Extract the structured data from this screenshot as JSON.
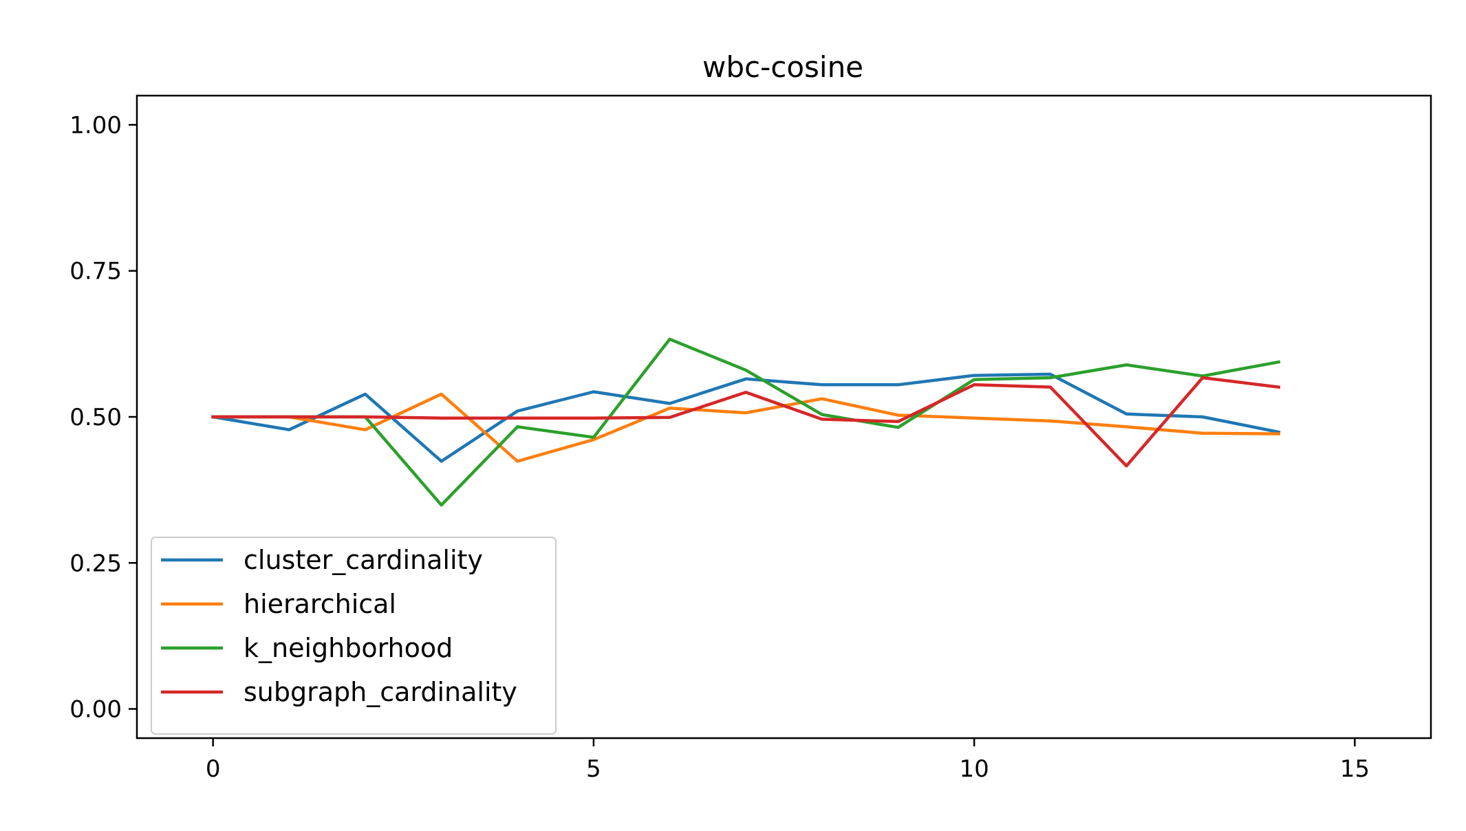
{
  "chart_data": {
    "type": "line",
    "title": "wbc-cosine",
    "xlabel": "",
    "ylabel": "",
    "xlim": [
      -1,
      16
    ],
    "ylim": [
      -0.05,
      1.05
    ],
    "x_ticks": [
      0,
      5,
      10,
      15
    ],
    "y_ticks": [
      0.0,
      0.25,
      0.5,
      0.75,
      1.0
    ],
    "x_tick_labels": [
      "0",
      "5",
      "10",
      "15"
    ],
    "y_tick_labels": [
      "0.00",
      "0.25",
      "0.50",
      "0.75",
      "1.00"
    ],
    "grid": false,
    "legend_position": "lower-left",
    "x": [
      0,
      1,
      2,
      3,
      4,
      5,
      6,
      7,
      8,
      9,
      10,
      11,
      12,
      13,
      14
    ],
    "series": [
      {
        "name": "cluster_cardinality",
        "color": "#1f77b4",
        "values": [
          0.5,
          0.478,
          0.539,
          0.424,
          0.51,
          0.543,
          0.523,
          0.565,
          0.555,
          0.555,
          0.571,
          0.573,
          0.505,
          0.5,
          0.474
        ]
      },
      {
        "name": "hierarchical",
        "color": "#ff7f0e",
        "values": [
          0.5,
          0.5,
          0.478,
          0.539,
          0.424,
          0.461,
          0.515,
          0.507,
          0.531,
          0.503,
          0.498,
          0.493,
          0.483,
          0.472,
          0.471
        ]
      },
      {
        "name": "k_neighborhood",
        "color": "#2ca02c",
        "values": [
          0.5,
          0.5,
          0.5,
          0.349,
          0.483,
          0.465,
          0.633,
          0.58,
          0.504,
          0.482,
          0.564,
          0.567,
          0.589,
          0.57,
          0.594
        ]
      },
      {
        "name": "subgraph_cardinality",
        "color": "#d62728",
        "values": [
          0.5,
          0.5,
          0.5,
          0.498,
          0.498,
          0.498,
          0.499,
          0.542,
          0.496,
          0.492,
          0.555,
          0.551,
          0.416,
          0.567,
          0.551
        ]
      }
    ]
  }
}
